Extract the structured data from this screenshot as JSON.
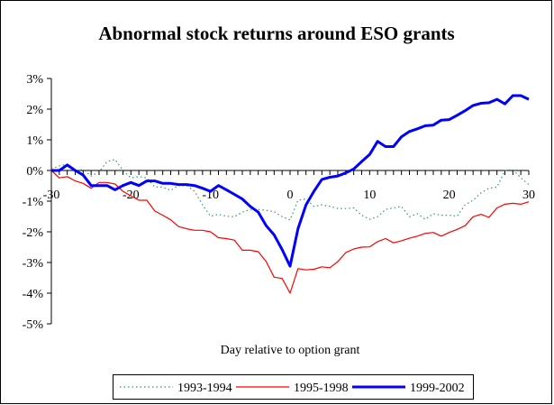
{
  "chart_data": {
    "type": "line",
    "title": "Abnormal stock returns around ESO grants",
    "xlabel": "Day relative to option grant",
    "ylabel": "",
    "xlim": [
      -30,
      30
    ],
    "ylim": [
      -5,
      3
    ],
    "x_ticks": [
      "-30",
      "-20",
      "-10",
      "0",
      "10",
      "20",
      "30"
    ],
    "y_ticks": [
      "3%",
      "2%",
      "1%",
      "0%",
      "-1%",
      "-2%",
      "-3%",
      "-4%",
      "-5%"
    ],
    "grid": false,
    "legend_position": "bottom",
    "x": [
      -30,
      -29,
      -28,
      -27,
      -26,
      -25,
      -24,
      -23,
      -22,
      -21,
      -20,
      -19,
      -18,
      -17,
      -16,
      -15,
      -14,
      -13,
      -12,
      -11,
      -10,
      -9,
      -8,
      -7,
      -6,
      -5,
      -4,
      -3,
      -2,
      -1,
      0,
      1,
      2,
      3,
      4,
      5,
      6,
      7,
      8,
      9,
      10,
      11,
      12,
      13,
      14,
      15,
      16,
      17,
      18,
      19,
      20,
      21,
      22,
      23,
      24,
      25,
      26,
      27,
      28,
      29,
      30
    ],
    "series": [
      {
        "name": "1993-1994",
        "color": "#339966",
        "style": "dotted",
        "values": [
          0.05,
          0.15,
          0.21,
          0,
          0.03,
          -0.18,
          -0.05,
          0.29,
          0.36,
          0,
          -0.24,
          -0.2,
          -0.24,
          -0.54,
          -0.54,
          -0.65,
          -0.49,
          -0.49,
          -0.68,
          -1.12,
          -1.49,
          -1.43,
          -1.49,
          -1.51,
          -1.36,
          -1.27,
          -1.27,
          -1.3,
          -1.34,
          -1.51,
          -1.61,
          -0.97,
          -0.93,
          -1.17,
          -1.12,
          -1.17,
          -1.24,
          -1.24,
          -1.22,
          -1.46,
          -1.59,
          -1.51,
          -1.27,
          -1.22,
          -1.17,
          -1.51,
          -1.41,
          -1.59,
          -1.41,
          -1.46,
          -1.46,
          -1.49,
          -1.12,
          -0.97,
          -0.73,
          -0.58,
          -0.54,
          0,
          0.03,
          -0.24,
          -0.46
        ]
      },
      {
        "name": "1995-1998",
        "color": "#ff0000",
        "style": "solid",
        "values": [
          0,
          -0.24,
          -0.2,
          -0.34,
          -0.42,
          -0.58,
          -0.39,
          -0.39,
          -0.44,
          -0.68,
          -0.83,
          -0.97,
          -0.97,
          -1.32,
          -1.46,
          -1.61,
          -1.83,
          -1.9,
          -1.95,
          -1.95,
          -2.0,
          -2.19,
          -2.22,
          -2.27,
          -2.6,
          -2.6,
          -2.65,
          -2.97,
          -3.48,
          -3.52,
          -4.0,
          -3.2,
          -3.24,
          -3.22,
          -3.14,
          -3.17,
          -2.97,
          -2.68,
          -2.56,
          -2.5,
          -2.49,
          -2.32,
          -2.22,
          -2.36,
          -2.29,
          -2.21,
          -2.14,
          -2.05,
          -2.02,
          -2.14,
          -2.02,
          -1.92,
          -1.8,
          -1.51,
          -1.43,
          -1.53,
          -1.22,
          -1.1,
          -1.07,
          -1.1,
          -1.02
        ]
      },
      {
        "name": "1999-2002",
        "color": "#0000ff",
        "style": "thick",
        "values": [
          0,
          0,
          0.18,
          0,
          -0.15,
          -0.49,
          -0.49,
          -0.49,
          -0.63,
          -0.49,
          -0.39,
          -0.49,
          -0.34,
          -0.34,
          -0.42,
          -0.42,
          -0.46,
          -0.46,
          -0.49,
          -0.58,
          -0.68,
          -0.49,
          -0.63,
          -0.78,
          -0.93,
          -1.17,
          -1.36,
          -1.8,
          -2.1,
          -2.58,
          -3.12,
          -1.9,
          -1.12,
          -0.68,
          -0.29,
          -0.22,
          -0.18,
          -0.08,
          0.05,
          0.29,
          0.52,
          0.95,
          0.78,
          0.78,
          1.1,
          1.27,
          1.36,
          1.46,
          1.48,
          1.64,
          1.66,
          1.8,
          1.95,
          2.12,
          2.19,
          2.21,
          2.32,
          2.17,
          2.44,
          2.44,
          2.32
        ]
      }
    ]
  }
}
